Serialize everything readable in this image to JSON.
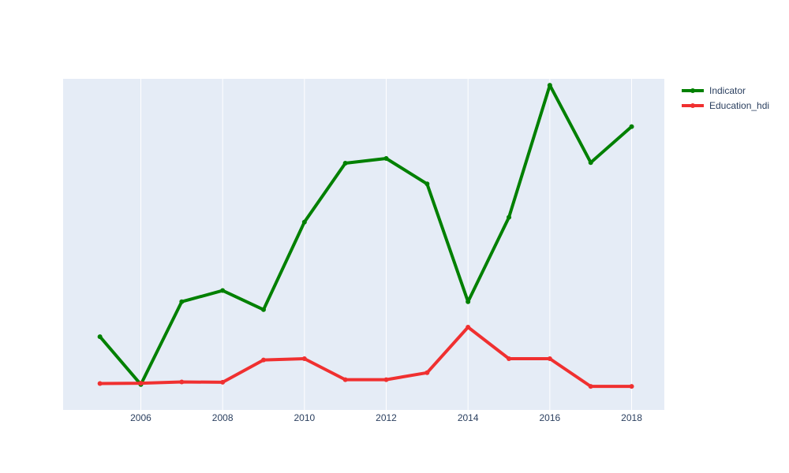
{
  "chart_data": {
    "type": "line",
    "x": [
      2005,
      2006,
      2007,
      2008,
      2009,
      2010,
      2011,
      2012,
      2013,
      2014,
      2015,
      2016,
      2017,
      2018
    ],
    "xlim": [
      2004.1,
      2018.8
    ],
    "x_ticks": [
      2006,
      2008,
      2010,
      2012,
      2014,
      2016,
      2018
    ],
    "ylim": [
      -0.02,
      1.02
    ],
    "y_axis_visible": false,
    "grid": {
      "x": true,
      "y": false
    },
    "legend": {
      "placement": "top-right"
    },
    "colors": {
      "plot_bg": "#e5ecf6",
      "grid": "#ffffff",
      "tick_text": "#2a3f5f"
    },
    "series": [
      {
        "name": "Indicator",
        "color": "#008000",
        "values": [
          0.21,
          0.06,
          0.32,
          0.355,
          0.295,
          0.57,
          0.755,
          0.77,
          0.69,
          0.32,
          0.585,
          1.0,
          0.757,
          0.87
        ]
      },
      {
        "name": "Education_hdi",
        "color": "#f03030",
        "values": [
          0.063,
          0.064,
          0.068,
          0.067,
          0.137,
          0.141,
          0.075,
          0.075,
          0.097,
          0.24,
          0.141,
          0.141,
          0.054,
          0.054
        ]
      }
    ]
  }
}
